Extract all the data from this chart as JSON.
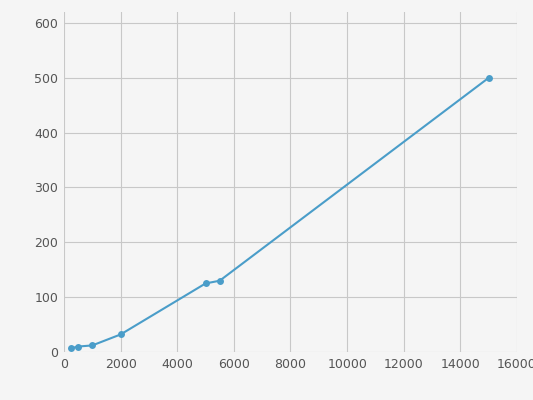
{
  "x": [
    256,
    512,
    1000,
    2000,
    5000,
    5500,
    15000
  ],
  "y": [
    7,
    10,
    12,
    32,
    125,
    130,
    500
  ],
  "line_color": "#4a9dc9",
  "marker_color": "#4a9dc9",
  "marker_size": 5,
  "line_width": 1.5,
  "xlim": [
    0,
    16000
  ],
  "ylim": [
    0,
    620
  ],
  "xticks": [
    0,
    2000,
    4000,
    6000,
    8000,
    10000,
    12000,
    14000,
    16000
  ],
  "yticks": [
    0,
    100,
    200,
    300,
    400,
    500,
    600
  ],
  "grid_color": "#c8c8c8",
  "background_color": "#f5f5f5",
  "tick_fontsize": 9,
  "tick_color": "#555555"
}
